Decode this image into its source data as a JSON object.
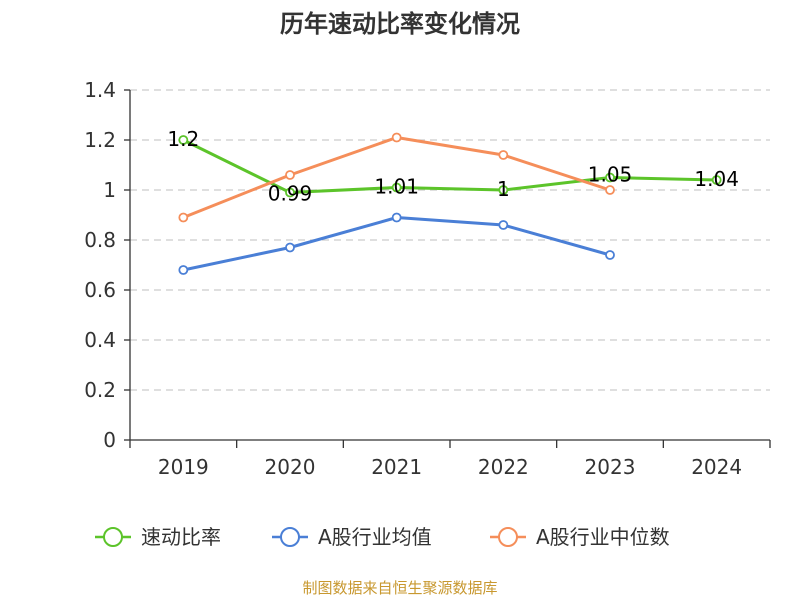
{
  "chart_data": {
    "type": "line",
    "title": "历年速动比率变化情况",
    "categories": [
      "2019",
      "2020",
      "2021",
      "2022",
      "2023",
      "2024"
    ],
    "yticks": [
      "0",
      "0.2",
      "0.4",
      "0.6",
      "0.8",
      "1",
      "1.2",
      "1.4"
    ],
    "ylim": [
      0,
      1.4
    ],
    "grid": true,
    "legend_position": "bottom",
    "series": [
      {
        "name": "速动比率",
        "color": "#5cc42a",
        "values": [
          1.2,
          0.99,
          1.01,
          1.0,
          1.05,
          1.04
        ],
        "labels": [
          "1.2",
          "0.99",
          "1.01",
          "1",
          "1.05",
          "1.04"
        ]
      },
      {
        "name": "A股行业均值",
        "color": "#4a7fd6",
        "values": [
          0.68,
          0.77,
          0.89,
          0.86,
          0.74,
          null
        ]
      },
      {
        "name": "A股行业中位数",
        "color": "#f58e5a",
        "values": [
          0.89,
          1.06,
          1.21,
          1.14,
          1.0,
          null
        ]
      }
    ],
    "source": "制图数据来自恒生聚源数据库"
  }
}
